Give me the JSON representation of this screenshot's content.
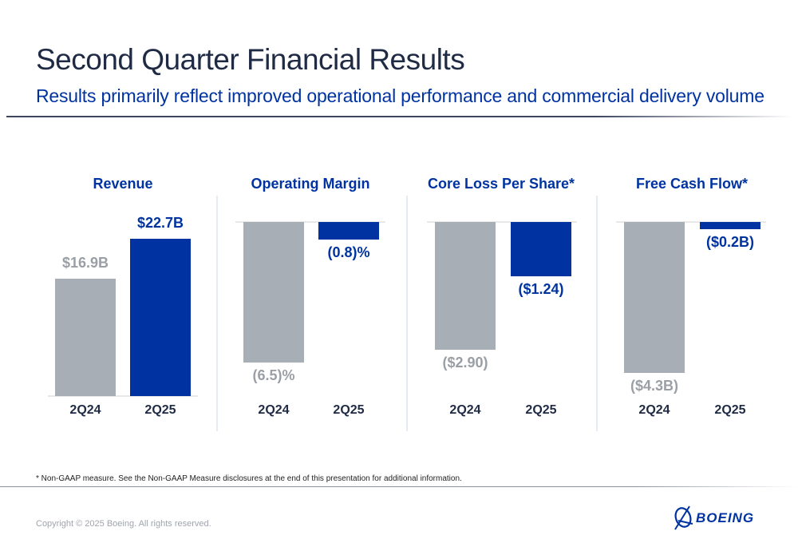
{
  "header": {
    "title": "Second Quarter Financial Results",
    "subtitle": "Results primarily reflect improved operational performance and commercial delivery volume"
  },
  "colors": {
    "prior": "#a7aeb5",
    "current": "#0033a1",
    "prior_label": "#9a9fa6"
  },
  "chart_data": [
    {
      "type": "bar",
      "title": "Revenue",
      "categories": [
        "2Q24",
        "2Q25"
      ],
      "values": [
        16.9,
        22.7
      ],
      "unit": "$B",
      "labels": [
        "$16.9B",
        "$22.7B"
      ]
    },
    {
      "type": "bar",
      "title": "Operating Margin",
      "categories": [
        "2Q24",
        "2Q25"
      ],
      "values": [
        -6.5,
        -0.8
      ],
      "unit": "%",
      "labels": [
        "(6.5)%",
        "(0.8)%"
      ]
    },
    {
      "type": "bar",
      "title": "Core Loss Per Share*",
      "categories": [
        "2Q24",
        "2Q25"
      ],
      "values": [
        -2.9,
        -1.24
      ],
      "unit": "$",
      "labels": [
        "($2.90)",
        "($1.24)"
      ]
    },
    {
      "type": "bar",
      "title": "Free Cash Flow*",
      "categories": [
        "2Q24",
        "2Q25"
      ],
      "values": [
        -4.3,
        -0.2
      ],
      "unit": "$B",
      "labels": [
        "($4.3B)",
        "($0.2B)"
      ]
    }
  ],
  "footer": {
    "footnote": "* Non-GAAP measure. See the Non-GAAP Measure disclosures at the end of this presentation for additional information.",
    "copyright": "Copyright © 2025 Boeing. All rights reserved.",
    "logo_text": "BOEING"
  }
}
